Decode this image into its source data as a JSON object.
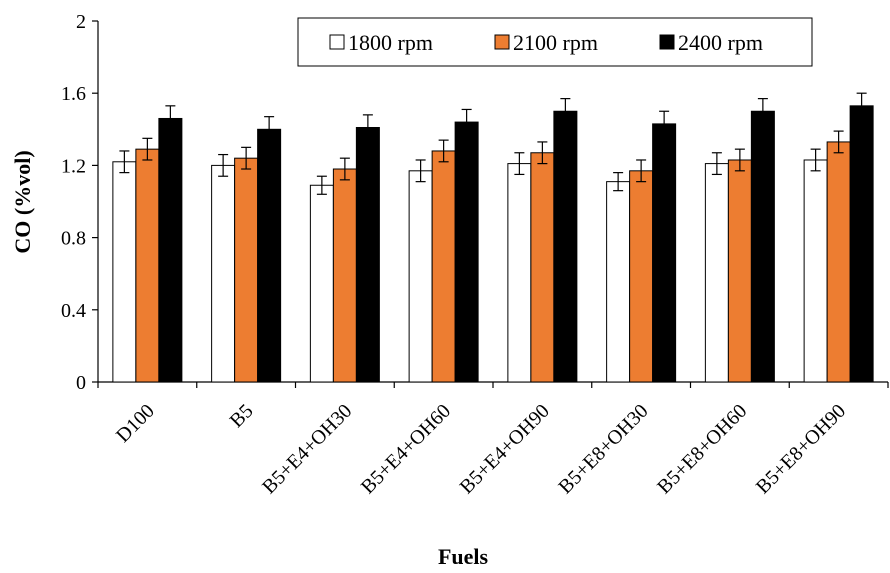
{
  "chart_data": {
    "type": "bar",
    "xlabel": "Fuels",
    "ylabel": "CO (%vol)",
    "ylim": [
      0,
      2
    ],
    "yticks": [
      "0",
      "0.4",
      "0.8",
      "1.2",
      "1.6",
      "2"
    ],
    "grid": false,
    "legend_position": "top-right",
    "categories": [
      "D100",
      "B5",
      "B5+E4+OH30",
      "B5+E4+OH60",
      "B5+E4+OH90",
      "B5+E8+OH30",
      "B5+E8+OH60",
      "B5+E8+OH90"
    ],
    "series": [
      {
        "name": "1800 rpm",
        "color": "#ffffff",
        "values": [
          1.22,
          1.2,
          1.09,
          1.17,
          1.21,
          1.11,
          1.21,
          1.23
        ],
        "errors": [
          0.06,
          0.06,
          0.05,
          0.06,
          0.06,
          0.05,
          0.06,
          0.06
        ]
      },
      {
        "name": "2100 rpm",
        "color": "#ed7d31",
        "values": [
          1.29,
          1.24,
          1.18,
          1.28,
          1.27,
          1.17,
          1.23,
          1.33
        ],
        "errors": [
          0.06,
          0.06,
          0.06,
          0.06,
          0.06,
          0.06,
          0.06,
          0.06
        ]
      },
      {
        "name": "2400 rpm",
        "color": "#000000",
        "values": [
          1.46,
          1.4,
          1.41,
          1.44,
          1.5,
          1.43,
          1.5,
          1.53
        ],
        "errors": [
          0.07,
          0.07,
          0.07,
          0.07,
          0.07,
          0.07,
          0.07,
          0.07
        ]
      }
    ]
  }
}
